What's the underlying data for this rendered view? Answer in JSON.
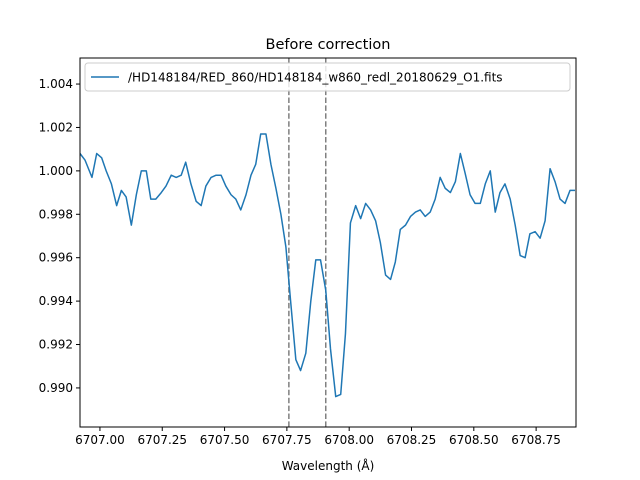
{
  "chart_data": {
    "type": "line",
    "title": "Before correction",
    "xlabel": "Wavelength (Å)",
    "ylabel": "",
    "xlim": [
      6706.92,
      6708.91
    ],
    "ylim": [
      0.9882,
      1.0052
    ],
    "x_ticks": [
      6707.0,
      6707.25,
      6707.5,
      6707.75,
      6708.0,
      6708.25,
      6708.5,
      6708.75
    ],
    "x_tick_labels": [
      "6707.00",
      "6707.25",
      "6707.50",
      "6707.75",
      "6708.00",
      "6708.25",
      "6708.50",
      "6708.75"
    ],
    "y_ticks": [
      0.99,
      0.992,
      0.994,
      0.996,
      0.998,
      1.0,
      1.002,
      1.004
    ],
    "y_tick_labels": [
      "0.990",
      "0.992",
      "0.994",
      "0.996",
      "0.998",
      "1.000",
      "1.002",
      "1.004"
    ],
    "legend_placement": "top",
    "grid": false,
    "vertical_lines": [
      {
        "x": 6707.758,
        "style": "dashed",
        "color": "#808080"
      },
      {
        "x": 6707.906,
        "style": "dashed",
        "color": "#808080"
      }
    ],
    "series": [
      {
        "name": "/HD148184/RED_860/HD148184_w860_redl_20180629_O1.fits",
        "color": "#1f77b4",
        "x": [
          6706.92,
          6706.94,
          6706.968,
          6706.987,
          6707.007,
          6707.025,
          6707.046,
          6707.067,
          6707.086,
          6707.105,
          6707.126,
          6707.146,
          6707.166,
          6707.186,
          6707.204,
          6707.224,
          6707.246,
          6707.265,
          6707.286,
          6707.306,
          6707.326,
          6707.344,
          6707.365,
          6707.386,
          6707.406,
          6707.425,
          6707.446,
          6707.466,
          6707.486,
          6707.505,
          6707.526,
          6707.545,
          6707.565,
          6707.586,
          6707.606,
          6707.625,
          6707.645,
          6707.666,
          6707.686,
          6707.706,
          6707.726,
          6707.746,
          6707.765,
          6707.786,
          6707.805,
          6707.826,
          6707.846,
          6707.866,
          6707.885,
          6707.906,
          6707.925,
          6707.946,
          6707.966,
          6707.985,
          6708.005,
          6708.026,
          6708.046,
          6708.066,
          6708.086,
          6708.106,
          6708.125,
          6708.146,
          6708.166,
          6708.185,
          6708.205,
          6708.226,
          6708.246,
          6708.266,
          6708.285,
          6708.305,
          6708.325,
          6708.345,
          6708.365,
          6708.385,
          6708.406,
          6708.426,
          6708.446,
          6708.465,
          6708.485,
          6708.505,
          6708.526,
          6708.546,
          6708.566,
          6708.586,
          6708.605,
          6708.625,
          6708.646,
          6708.666,
          6708.686,
          6708.706,
          6708.725,
          6708.746,
          6708.766,
          6708.786,
          6708.806,
          6708.826,
          6708.846,
          6708.866,
          6708.886,
          6708.906
        ],
        "y": [
          1.0008,
          1.0005,
          0.9997,
          1.0008,
          1.0006,
          1.0,
          0.9994,
          0.9984,
          0.9991,
          0.9988,
          0.9975,
          0.9989,
          1.0,
          1.0,
          0.9987,
          0.9987,
          0.999,
          0.9993,
          0.9998,
          0.9997,
          0.9998,
          1.0004,
          0.9994,
          0.9986,
          0.9984,
          0.9993,
          0.9997,
          0.9998,
          0.9998,
          0.9993,
          0.9989,
          0.9987,
          0.9982,
          0.9989,
          0.9998,
          1.0003,
          1.0017,
          1.0017,
          1.0003,
          0.9992,
          0.998,
          0.9965,
          0.994,
          0.9913,
          0.9908,
          0.9916,
          0.994,
          0.9959,
          0.9959,
          0.9945,
          0.9918,
          0.9896,
          0.9897,
          0.9925,
          0.9976,
          0.9984,
          0.9978,
          0.9985,
          0.9982,
          0.9977,
          0.9967,
          0.9952,
          0.995,
          0.9958,
          0.9973,
          0.9975,
          0.9979,
          0.9981,
          0.9982,
          0.9979,
          0.9981,
          0.9987,
          0.9997,
          0.9992,
          0.999,
          0.9995,
          1.0008,
          0.9999,
          0.9989,
          0.9985,
          0.9985,
          0.9994,
          1.0,
          0.9981,
          0.999,
          0.9994,
          0.9987,
          0.9975,
          0.9961,
          0.996,
          0.9971,
          0.9972,
          0.9969,
          0.9977,
          1.0001,
          0.9995,
          0.9987,
          0.9985,
          0.9991,
          0.9991
        ]
      }
    ]
  }
}
